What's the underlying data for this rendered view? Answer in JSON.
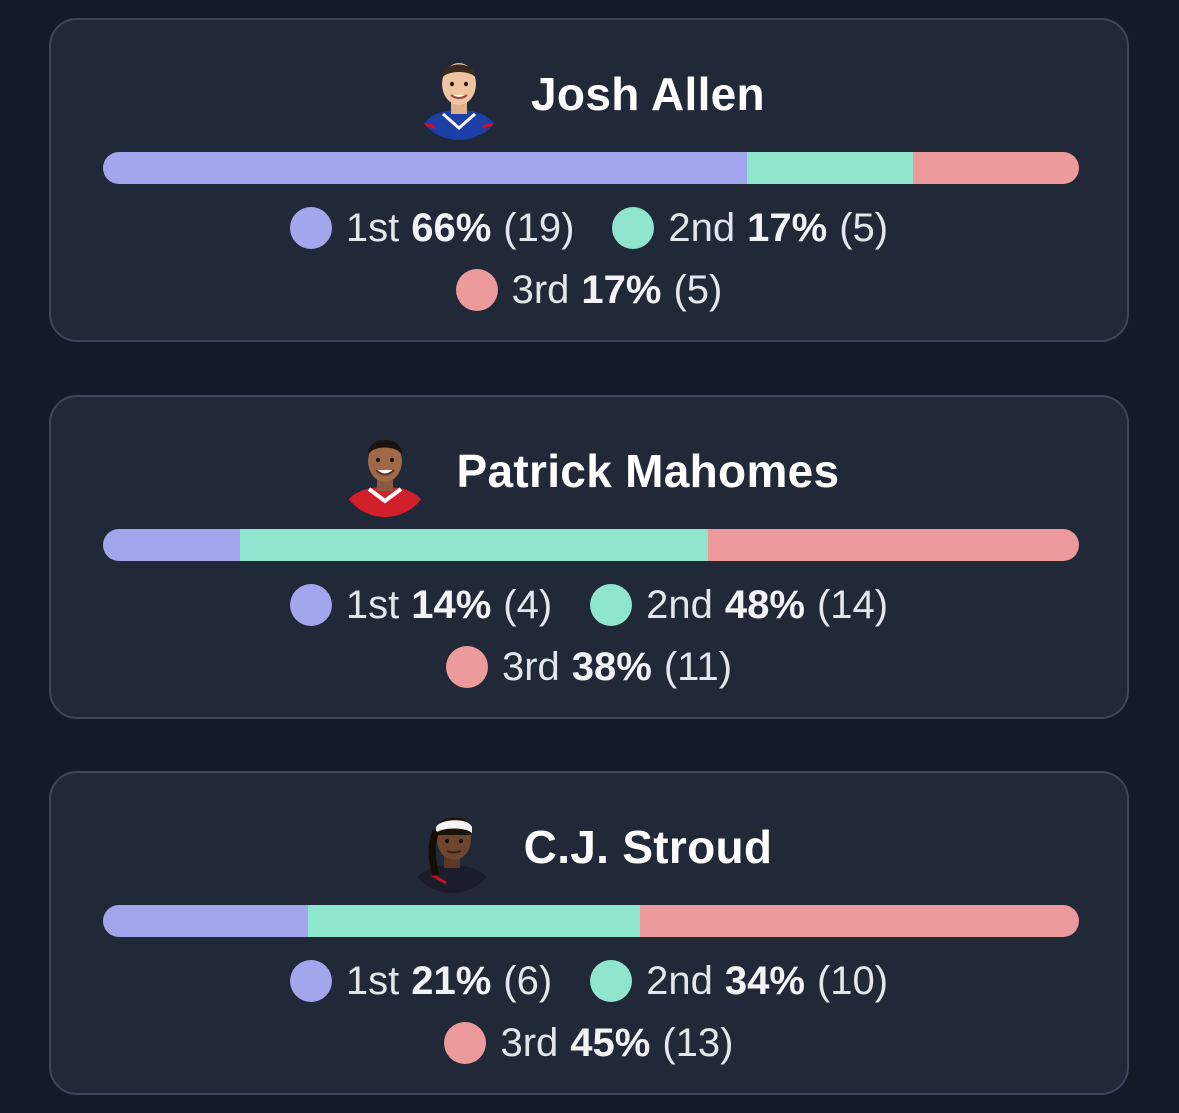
{
  "colors": {
    "first": "#a3a6ec",
    "second": "#8fe5ce",
    "third": "#ec9a9b",
    "card_bg": "#212938",
    "page_bg": "#131a28"
  },
  "players": [
    {
      "name": "Josh Allen",
      "avatar": "player-photo-buffalo-jersey",
      "ranks": [
        {
          "label": "1st",
          "pct": "66%",
          "count": "(19)",
          "value": 66
        },
        {
          "label": "2nd",
          "pct": "17%",
          "count": "(5)",
          "value": 17
        },
        {
          "label": "3rd",
          "pct": "17%",
          "count": "(5)",
          "value": 17
        }
      ]
    },
    {
      "name": "Patrick Mahomes",
      "avatar": "player-photo-kansas-city-jersey",
      "ranks": [
        {
          "label": "1st",
          "pct": "14%",
          "count": "(4)",
          "value": 14
        },
        {
          "label": "2nd",
          "pct": "48%",
          "count": "(14)",
          "value": 48
        },
        {
          "label": "3rd",
          "pct": "38%",
          "count": "(11)",
          "value": 38
        }
      ]
    },
    {
      "name": "C.J. Stroud",
      "avatar": "player-photo-headband",
      "ranks": [
        {
          "label": "1st",
          "pct": "21%",
          "count": "(6)",
          "value": 21
        },
        {
          "label": "2nd",
          "pct": "34%",
          "count": "(10)",
          "value": 34
        },
        {
          "label": "3rd",
          "pct": "45%",
          "count": "(13)",
          "value": 45
        }
      ]
    }
  ]
}
